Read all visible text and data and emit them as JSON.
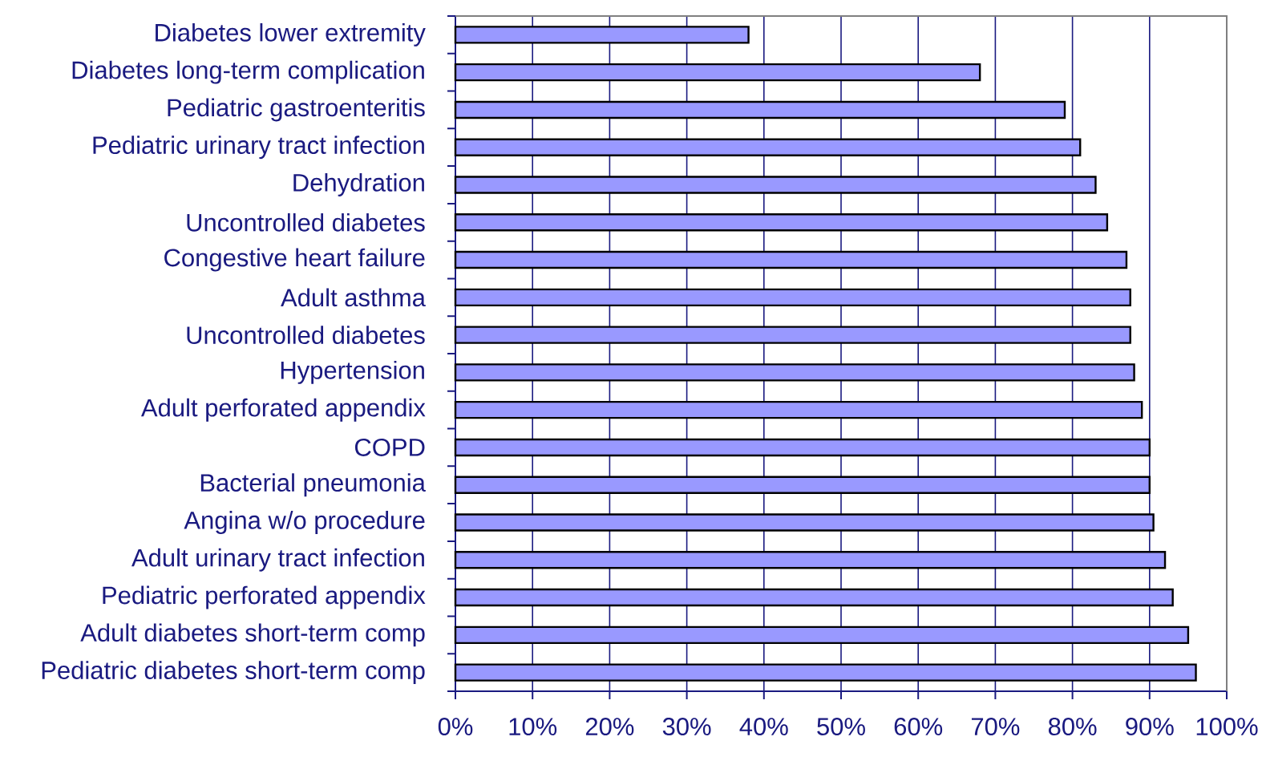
{
  "chart_data": {
    "type": "bar",
    "orientation": "horizontal",
    "categories": [
      "Diabetes lower extremity",
      "Diabetes long-term complication",
      "Pediatric gastroenteritis",
      "Pediatric urinary tract infection",
      "Dehydration",
      "Uncontrolled diabetes",
      "Congestive heart failure",
      "Adult asthma",
      "Uncontrolled diabetes",
      "Hypertension",
      "Adult perforated appendix",
      "COPD",
      "Bacterial pneumonia",
      "Angina w/o procedure",
      "Adult urinary tract infection",
      "Pediatric perforated appendix",
      "Adult diabetes short-term comp",
      "Pediatric diabetes short-term comp"
    ],
    "values": [
      38,
      68,
      79,
      81,
      83,
      84.5,
      87,
      87.5,
      87.5,
      88,
      89,
      90,
      90,
      90.5,
      92,
      93,
      95,
      96
    ],
    "color": "#9999ff",
    "xlim": [
      0,
      100
    ],
    "xticks": [
      {
        "value": 0,
        "label": "0%"
      },
      {
        "value": 10,
        "label": "10%"
      },
      {
        "value": 20,
        "label": "20%"
      },
      {
        "value": 30,
        "label": "30%"
      },
      {
        "value": 40,
        "label": "40%"
      },
      {
        "value": 50,
        "label": "50%"
      },
      {
        "value": 60,
        "label": "60%"
      },
      {
        "value": 70,
        "label": "70%"
      },
      {
        "value": 80,
        "label": "80%"
      },
      {
        "value": 90,
        "label": "90%"
      },
      {
        "value": 100,
        "label": "100%"
      }
    ],
    "grid": "x"
  }
}
